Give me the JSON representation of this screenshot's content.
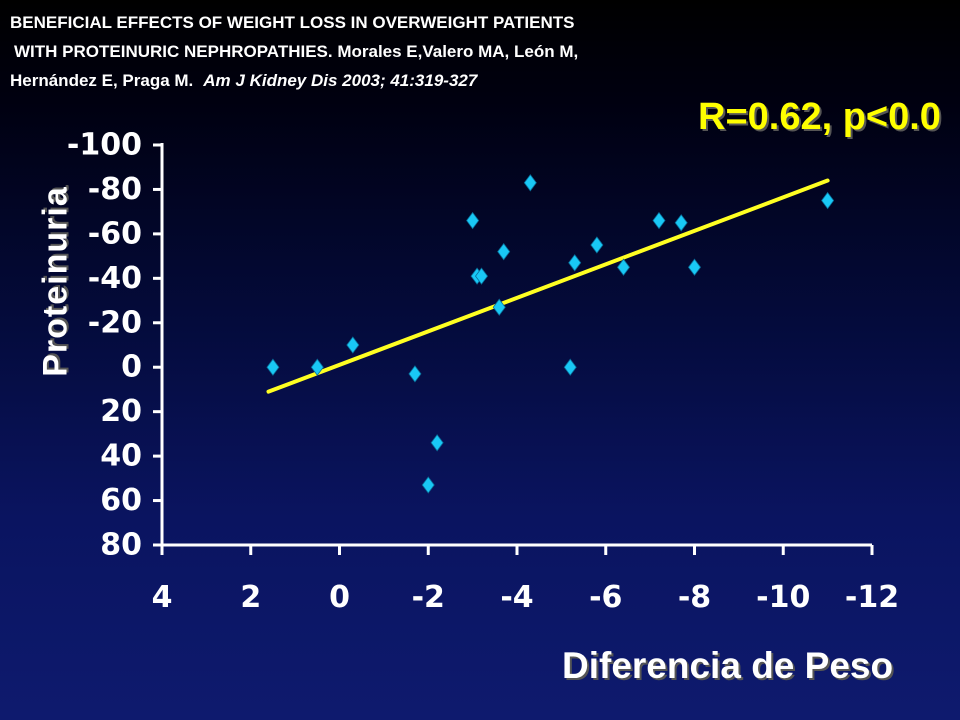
{
  "citation": {
    "line1": "BENEFICIAL EFFECTS OF WEIGHT  LOSS  IN OVERWEIGHT PATIENTS",
    "line2": "WITH PROTEINURIC NEPHROPATHIES. Morales E,Valero MA, León M,",
    "line3": "Hernández E, Praga M.",
    "journal": "Am J Kidney Dis 2003; 41:319-327"
  },
  "stat_text": "R=0.62, p<0.0",
  "colors": {
    "points": "#19c8f5",
    "fit_line": "#ffff22",
    "axes": "#ffffff",
    "stat_text": "#ffff00"
  },
  "chart_data": {
    "type": "scatter",
    "xlabel": "Diferencia de Peso",
    "ylabel": "Proteinuria",
    "xlim": [
      4,
      -12
    ],
    "ylim": [
      80,
      -100
    ],
    "x_reversed": true,
    "y_reversed": true,
    "xticks": [
      4,
      2,
      0,
      -2,
      -4,
      -6,
      -8,
      -10,
      -12
    ],
    "yticks": [
      -100,
      -80,
      -60,
      -40,
      -20,
      0,
      20,
      40,
      60,
      80
    ],
    "grid": false,
    "legend": "none",
    "series": [
      {
        "points": [
          {
            "x": 1.5,
            "y": 0
          },
          {
            "x": 0.5,
            "y": 0
          },
          {
            "x": -0.3,
            "y": -10
          },
          {
            "x": -1.7,
            "y": 3
          },
          {
            "x": -2.0,
            "y": 53
          },
          {
            "x": -2.2,
            "y": 34
          },
          {
            "x": -3.0,
            "y": -66
          },
          {
            "x": -3.1,
            "y": -41
          },
          {
            "x": -3.2,
            "y": -41
          },
          {
            "x": -3.6,
            "y": -27
          },
          {
            "x": -3.7,
            "y": -52
          },
          {
            "x": -4.3,
            "y": -83
          },
          {
            "x": -5.2,
            "y": 0
          },
          {
            "x": -5.3,
            "y": -47
          },
          {
            "x": -5.8,
            "y": -55
          },
          {
            "x": -6.4,
            "y": -45
          },
          {
            "x": -7.2,
            "y": -66
          },
          {
            "x": -7.7,
            "y": -65
          },
          {
            "x": -8.0,
            "y": -45
          },
          {
            "x": -11.0,
            "y": -75
          }
        ]
      }
    ],
    "fit_line": {
      "x": [
        1.6,
        -11.0
      ],
      "y": [
        11,
        -84
      ]
    }
  }
}
